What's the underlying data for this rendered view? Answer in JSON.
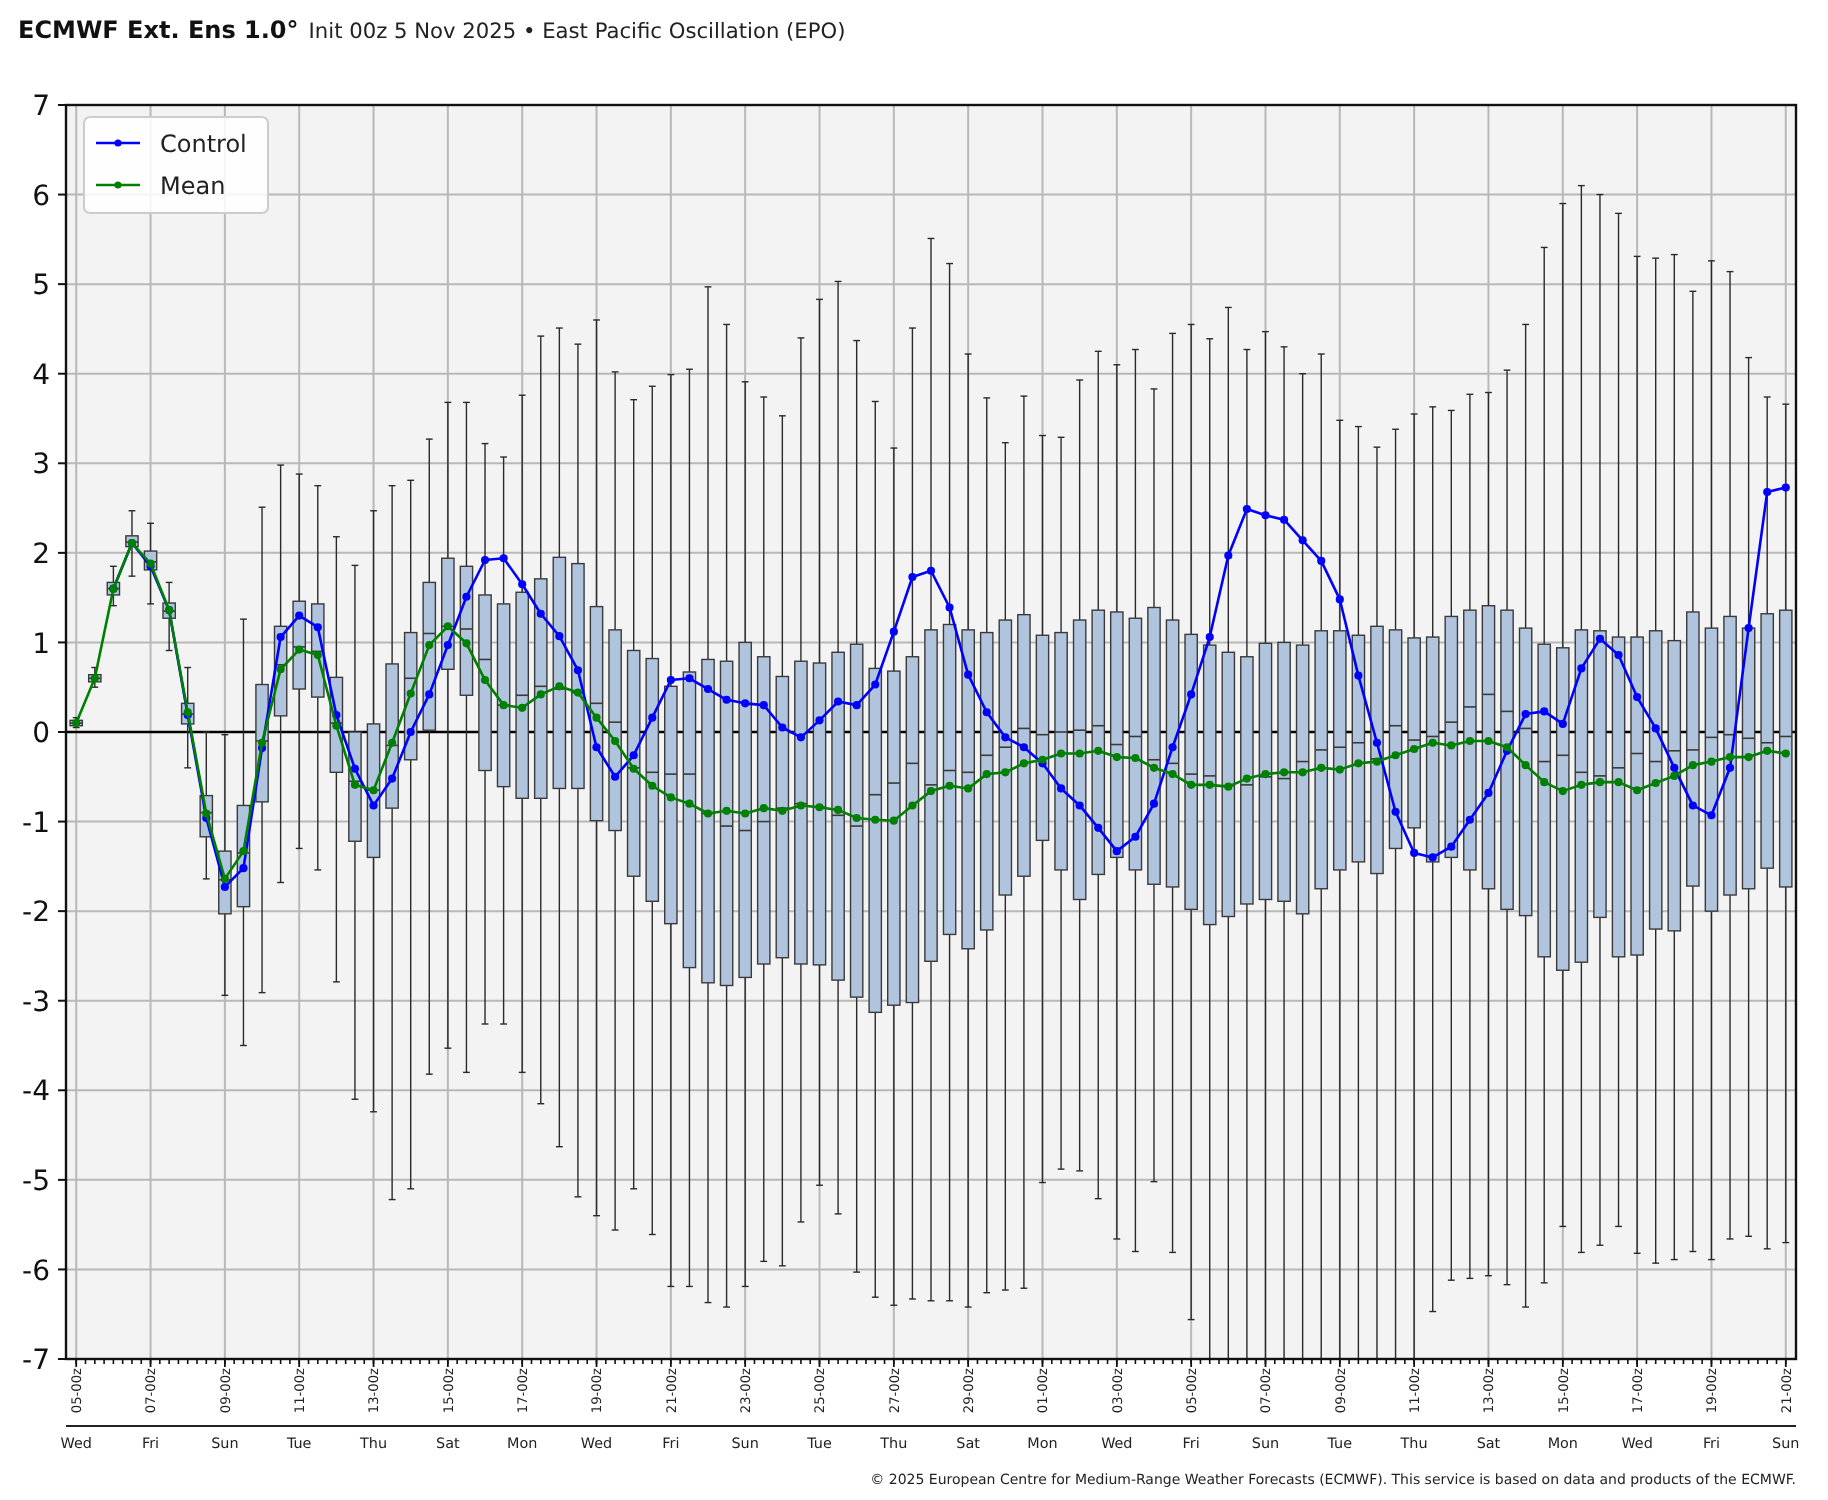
{
  "chart_data": {
    "type": "box",
    "title": "ECMWF Ext. Ens 1.0°",
    "subtitle": "Init 00z 5 Nov 2025 • East Pacific Oscillation (EPO)",
    "categories": [
      "05-00z\nWed",
      null,
      null,
      null,
      "07-00z\nFri",
      null,
      null,
      null,
      "09-00z\nSun",
      null,
      null,
      null,
      "11-00z\nTue",
      null,
      null,
      null,
      "13-00z\nThu",
      null,
      null,
      null,
      "15-00z\nSat",
      null,
      null,
      null,
      "17-00z\nMon",
      null,
      null,
      null,
      "19-00z\nWed",
      null,
      null,
      null,
      "21-00z\nFri",
      null,
      null,
      null,
      "23-00z\nSun",
      null,
      null,
      null,
      "25-00z\nTue",
      null,
      null,
      null,
      "27-00z\nThu",
      null,
      null,
      null,
      "29-00z\nSat",
      null,
      null,
      null,
      "01-00z\nMon",
      null,
      null,
      null,
      "03-00z\nWed",
      null,
      null,
      null,
      "05-00z\nFri",
      null,
      null,
      null,
      "07-00z\nSun",
      null,
      null,
      null,
      "09-00z\nTue",
      null,
      null,
      null,
      "11-00z\nThu",
      null,
      null,
      null,
      "13-00z\nSat",
      null,
      null,
      null,
      "15-00z\nMon",
      null,
      null,
      null,
      "17-00z\nWed",
      null,
      null,
      null,
      "19-00z\nFri",
      null,
      null,
      null,
      "21-00z\nSun"
    ],
    "series": [
      {
        "color": "#b0c4de",
        "boxes": [
          {
            "low": 0.05,
            "q1": 0.07,
            "median": 0.1,
            "q3": 0.13,
            "high": 0.16
          },
          {
            "low": 0.5,
            "q1": 0.56,
            "median": 0.6,
            "q3": 0.64,
            "high": 0.72
          },
          {
            "low": 1.41,
            "q1": 1.53,
            "median": 1.6,
            "q3": 1.67,
            "high": 1.85
          },
          {
            "low": 1.74,
            "q1": 2.07,
            "median": 2.12,
            "q3": 2.19,
            "high": 2.47
          },
          {
            "low": 1.43,
            "q1": 1.81,
            "median": 1.9,
            "q3": 2.02,
            "high": 2.33
          },
          {
            "low": 0.91,
            "q1": 1.27,
            "median": 1.35,
            "q3": 1.44,
            "high": 1.67
          },
          {
            "low": -0.4,
            "q1": 0.09,
            "median": 0.2,
            "q3": 0.32,
            "high": 0.72
          },
          {
            "low": -1.64,
            "q1": -1.17,
            "median": -0.9,
            "q3": -0.71,
            "high": 0.0
          },
          {
            "low": -2.94,
            "q1": -2.03,
            "median": -1.65,
            "q3": -1.33,
            "high": -0.03
          },
          {
            "low": -3.5,
            "q1": -1.95,
            "median": -1.35,
            "q3": -0.82,
            "high": 1.26
          },
          {
            "low": -2.91,
            "q1": -0.78,
            "median": -0.1,
            "q3": 0.53,
            "high": 2.51
          },
          {
            "low": -1.68,
            "q1": 0.18,
            "median": 0.75,
            "q3": 1.18,
            "high": 2.98
          },
          {
            "low": -1.3,
            "q1": 0.48,
            "median": 0.95,
            "q3": 1.46,
            "high": 2.88
          },
          {
            "low": -1.54,
            "q1": 0.39,
            "median": 0.9,
            "q3": 1.43,
            "high": 2.75
          },
          {
            "low": -2.79,
            "q1": -0.45,
            "median": 0.1,
            "q3": 0.61,
            "high": 2.18
          },
          {
            "low": -4.1,
            "q1": -1.22,
            "median": -0.55,
            "q3": 0.0,
            "high": 1.86
          },
          {
            "low": -4.24,
            "q1": -1.4,
            "median": -0.65,
            "q3": 0.09,
            "high": 2.47
          },
          {
            "low": -5.22,
            "q1": -0.85,
            "median": -0.15,
            "q3": 0.76,
            "high": 2.75
          },
          {
            "low": -5.1,
            "q1": -0.31,
            "median": 0.6,
            "q3": 1.11,
            "high": 2.81
          },
          {
            "low": -3.82,
            "q1": 0.02,
            "median": 1.1,
            "q3": 1.67,
            "high": 3.27
          },
          {
            "low": -3.53,
            "q1": 0.7,
            "median": 1.18,
            "q3": 1.94,
            "high": 3.68
          },
          {
            "low": -3.8,
            "q1": 0.41,
            "median": 1.15,
            "q3": 1.85,
            "high": 3.68
          },
          {
            "low": -3.26,
            "q1": -0.43,
            "median": 0.81,
            "q3": 1.53,
            "high": 3.22
          },
          {
            "low": -3.26,
            "q1": -0.61,
            "median": 0.3,
            "q3": 1.43,
            "high": 3.07
          },
          {
            "low": -3.8,
            "q1": -0.74,
            "median": 0.41,
            "q3": 1.56,
            "high": 3.76
          },
          {
            "low": -4.15,
            "q1": -0.74,
            "median": 0.51,
            "q3": 1.71,
            "high": 4.42
          },
          {
            "low": -4.63,
            "q1": -0.63,
            "median": 0.48,
            "q3": 1.95,
            "high": 4.51
          },
          {
            "low": -5.19,
            "q1": -0.63,
            "median": 0.44,
            "q3": 1.88,
            "high": 4.33
          },
          {
            "low": -5.4,
            "q1": -0.99,
            "median": 0.32,
            "q3": 1.4,
            "high": 4.6
          },
          {
            "low": -5.56,
            "q1": -1.1,
            "median": 0.11,
            "q3": 1.14,
            "high": 4.02
          },
          {
            "low": -5.1,
            "q1": -1.61,
            "median": -0.4,
            "q3": 0.91,
            "high": 3.71
          },
          {
            "low": -5.61,
            "q1": -1.89,
            "median": -0.45,
            "q3": 0.82,
            "high": 3.86
          },
          {
            "low": -6.19,
            "q1": -2.14,
            "median": -0.47,
            "q3": 0.51,
            "high": 3.99
          },
          {
            "low": -6.19,
            "q1": -2.63,
            "median": -0.47,
            "q3": 0.67,
            "high": 4.05
          },
          {
            "low": -6.37,
            "q1": -2.8,
            "median": -0.91,
            "q3": 0.81,
            "high": 4.97
          },
          {
            "low": -6.42,
            "q1": -2.83,
            "median": -1.05,
            "q3": 0.79,
            "high": 4.55
          },
          {
            "low": -6.19,
            "q1": -2.74,
            "median": -1.1,
            "q3": 1.0,
            "high": 3.91
          },
          {
            "low": -5.91,
            "q1": -2.59,
            "median": -1.0,
            "q3": 0.84,
            "high": 3.74
          },
          {
            "low": -5.96,
            "q1": -2.52,
            "median": -0.85,
            "q3": 0.62,
            "high": 3.53
          },
          {
            "low": -5.47,
            "q1": -2.59,
            "median": -0.8,
            "q3": 0.79,
            "high": 4.4
          },
          {
            "low": -5.06,
            "q1": -2.6,
            "median": -0.84,
            "q3": 0.77,
            "high": 4.83
          },
          {
            "low": -5.38,
            "q1": -2.77,
            "median": -0.93,
            "q3": 0.89,
            "high": 5.03
          },
          {
            "low": -6.03,
            "q1": -2.96,
            "median": -1.05,
            "q3": 0.98,
            "high": 4.37
          },
          {
            "low": -6.31,
            "q1": -3.13,
            "median": -0.7,
            "q3": 0.71,
            "high": 3.69
          },
          {
            "low": -6.4,
            "q1": -3.05,
            "median": -0.57,
            "q3": 0.68,
            "high": 3.17
          },
          {
            "low": -6.33,
            "q1": -3.02,
            "median": -0.35,
            "q3": 0.84,
            "high": 4.51
          },
          {
            "low": -6.35,
            "q1": -2.56,
            "median": -0.59,
            "q3": 1.14,
            "high": 5.51
          },
          {
            "low": -6.35,
            "q1": -2.26,
            "median": -0.43,
            "q3": 1.2,
            "high": 5.23
          },
          {
            "low": -6.42,
            "q1": -2.42,
            "median": -0.45,
            "q3": 1.14,
            "high": 4.22
          },
          {
            "low": -6.26,
            "q1": -2.21,
            "median": -0.26,
            "q3": 1.11,
            "high": 3.73
          },
          {
            "low": -6.23,
            "q1": -1.82,
            "median": -0.17,
            "q3": 1.25,
            "high": 3.23
          },
          {
            "low": -6.21,
            "q1": -1.61,
            "median": 0.04,
            "q3": 1.31,
            "high": 3.75
          },
          {
            "low": -5.03,
            "q1": -1.21,
            "median": -0.03,
            "q3": 1.08,
            "high": 3.31
          },
          {
            "low": -4.88,
            "q1": -1.54,
            "median": 0.0,
            "q3": 1.11,
            "high": 3.29
          },
          {
            "low": -4.9,
            "q1": -1.87,
            "median": 0.02,
            "q3": 1.25,
            "high": 3.93
          },
          {
            "low": -5.21,
            "q1": -1.59,
            "median": 0.07,
            "q3": 1.36,
            "high": 4.25
          },
          {
            "low": -5.66,
            "q1": -1.4,
            "median": -0.14,
            "q3": 1.34,
            "high": 4.1
          },
          {
            "low": -5.8,
            "q1": -1.54,
            "median": -0.05,
            "q3": 1.27,
            "high": 4.27
          },
          {
            "low": -5.02,
            "q1": -1.7,
            "median": -0.31,
            "q3": 1.39,
            "high": 3.83
          },
          {
            "low": -5.81,
            "q1": -1.73,
            "median": -0.35,
            "q3": 1.25,
            "high": 4.45
          },
          {
            "low": -6.56,
            "q1": -1.98,
            "median": -0.47,
            "q3": 1.09,
            "high": 4.55
          },
          {
            "low": -7,
            "q1": -2.15,
            "median": -0.49,
            "q3": 0.97,
            "high": 4.39
          },
          {
            "low": -7,
            "q1": -2.06,
            "median": -0.6,
            "q3": 0.89,
            "high": 4.74
          },
          {
            "low": -7,
            "q1": -1.92,
            "median": -0.59,
            "q3": 0.84,
            "high": 4.27
          },
          {
            "low": -7,
            "q1": -1.87,
            "median": -0.5,
            "q3": 0.99,
            "high": 4.47
          },
          {
            "low": -7,
            "q1": -1.89,
            "median": -0.52,
            "q3": 1.0,
            "high": 4.3
          },
          {
            "low": -7,
            "q1": -2.03,
            "median": -0.33,
            "q3": 0.97,
            "high": 4.0
          },
          {
            "low": -7,
            "q1": -1.75,
            "median": -0.2,
            "q3": 1.13,
            "high": 4.22
          },
          {
            "low": -7,
            "q1": -1.54,
            "median": -0.17,
            "q3": 1.13,
            "high": 3.48
          },
          {
            "low": -7,
            "q1": -1.45,
            "median": -0.12,
            "q3": 1.08,
            "high": 3.41
          },
          {
            "low": -7,
            "q1": -1.58,
            "median": -0.3,
            "q3": 1.18,
            "high": 3.18
          },
          {
            "low": -7,
            "q1": -1.3,
            "median": 0.07,
            "q3": 1.14,
            "high": 3.38
          },
          {
            "low": -7,
            "q1": -1.07,
            "median": -0.09,
            "q3": 1.05,
            "high": 3.55
          },
          {
            "low": -6.47,
            "q1": -1.45,
            "median": -0.05,
            "q3": 1.06,
            "high": 3.63
          },
          {
            "low": -6.12,
            "q1": -1.4,
            "median": 0.11,
            "q3": 1.29,
            "high": 3.59
          },
          {
            "low": -6.1,
            "q1": -1.54,
            "median": 0.28,
            "q3": 1.36,
            "high": 3.77
          },
          {
            "low": -6.07,
            "q1": -1.75,
            "median": 0.42,
            "q3": 1.41,
            "high": 3.79
          },
          {
            "low": -6.17,
            "q1": -1.98,
            "median": 0.23,
            "q3": 1.36,
            "high": 4.04
          },
          {
            "low": -6.42,
            "q1": -2.05,
            "median": 0.04,
            "q3": 1.16,
            "high": 4.55
          },
          {
            "low": -6.15,
            "q1": -2.51,
            "median": -0.33,
            "q3": 0.98,
            "high": 5.41
          },
          {
            "low": -5.52,
            "q1": -2.66,
            "median": -0.26,
            "q3": 0.94,
            "high": 5.9
          },
          {
            "low": -5.81,
            "q1": -2.57,
            "median": -0.45,
            "q3": 1.14,
            "high": 6.1
          },
          {
            "low": -5.73,
            "q1": -2.07,
            "median": -0.49,
            "q3": 1.13,
            "high": 6.0
          },
          {
            "low": -5.52,
            "q1": -2.51,
            "median": -0.4,
            "q3": 1.06,
            "high": 5.79
          },
          {
            "low": -5.82,
            "q1": -2.49,
            "median": -0.24,
            "q3": 1.06,
            "high": 5.31
          },
          {
            "low": -5.93,
            "q1": -2.2,
            "median": -0.33,
            "q3": 1.13,
            "high": 5.29
          },
          {
            "low": -5.89,
            "q1": -2.22,
            "median": -0.21,
            "q3": 1.02,
            "high": 5.33
          },
          {
            "low": -5.8,
            "q1": -1.72,
            "median": -0.2,
            "q3": 1.34,
            "high": 4.92
          },
          {
            "low": -5.89,
            "q1": -2.0,
            "median": -0.06,
            "q3": 1.16,
            "high": 5.26
          },
          {
            "low": -5.66,
            "q1": -1.82,
            "median": -0.03,
            "q3": 1.29,
            "high": 5.14
          },
          {
            "low": -5.63,
            "q1": -1.75,
            "median": -0.07,
            "q3": 1.16,
            "high": 4.18
          },
          {
            "low": -5.77,
            "q1": -1.52,
            "median": -0.12,
            "q3": 1.32,
            "high": 3.74
          },
          {
            "low": -5.7,
            "q1": -1.73,
            "median": -0.05,
            "q3": 1.36,
            "high": 3.66
          }
        ]
      },
      {
        "name": "Control",
        "type": "line",
        "color": "#0000ff",
        "values": [
          null,
          null,
          1.6,
          2.11,
          1.85,
          1.36,
          0.19,
          -0.96,
          -1.73,
          -1.52,
          -0.18,
          1.06,
          1.3,
          1.17,
          0.19,
          -0.41,
          -0.82,
          -0.52,
          0.0,
          0.42,
          0.97,
          1.51,
          1.92,
          1.94,
          1.65,
          1.32,
          1.07,
          0.69,
          -0.17,
          -0.5,
          -0.26,
          0.16,
          0.58,
          0.6,
          0.48,
          0.36,
          0.32,
          0.3,
          0.05,
          -0.06,
          0.13,
          0.34,
          0.3,
          0.53,
          1.12,
          1.73,
          1.8,
          1.39,
          0.64,
          0.22,
          -0.06,
          -0.17,
          -0.35,
          -0.63,
          -0.82,
          -1.07,
          -1.33,
          -1.17,
          -0.8,
          -0.17,
          0.42,
          1.06,
          1.97,
          2.49,
          2.42,
          2.37,
          2.14,
          1.91,
          1.48,
          0.63,
          -0.12,
          -0.89,
          -1.35,
          -1.4,
          -1.28,
          -0.98,
          -0.68,
          -0.21,
          0.2,
          0.23,
          0.09,
          0.71,
          1.04,
          0.86,
          0.39,
          0.04,
          -0.4,
          -0.82,
          -0.93,
          -0.4,
          1.16,
          2.68,
          2.73
        ]
      },
      {
        "name": "Mean",
        "type": "line",
        "color": "#008000",
        "values": [
          0.1,
          0.6,
          1.6,
          2.11,
          1.88,
          1.36,
          0.22,
          -0.91,
          -1.64,
          -1.33,
          -0.12,
          0.7,
          0.92,
          0.86,
          0.07,
          -0.59,
          -0.65,
          -0.12,
          0.43,
          0.97,
          1.18,
          0.99,
          0.58,
          0.3,
          0.27,
          0.42,
          0.51,
          0.44,
          0.16,
          -0.1,
          -0.41,
          -0.6,
          -0.73,
          -0.8,
          -0.91,
          -0.88,
          -0.91,
          -0.85,
          -0.88,
          -0.82,
          -0.84,
          -0.87,
          -0.96,
          -0.98,
          -0.99,
          -0.82,
          -0.66,
          -0.6,
          -0.63,
          -0.47,
          -0.45,
          -0.35,
          -0.31,
          -0.24,
          -0.24,
          -0.21,
          -0.28,
          -0.29,
          -0.4,
          -0.47,
          -0.59,
          -0.59,
          -0.61,
          -0.52,
          -0.47,
          -0.45,
          -0.45,
          -0.4,
          -0.42,
          -0.35,
          -0.33,
          -0.26,
          -0.19,
          -0.12,
          -0.15,
          -0.1,
          -0.1,
          -0.17,
          -0.37,
          -0.56,
          -0.66,
          -0.59,
          -0.56,
          -0.56,
          -0.65,
          -0.57,
          -0.49,
          -0.37,
          -0.33,
          -0.28,
          -0.28,
          -0.21,
          -0.24
        ]
      }
    ],
    "ylim": [
      -7,
      7
    ],
    "yticks": [
      -7,
      -6,
      -5,
      -4,
      -3,
      -2,
      -1,
      0,
      1,
      2,
      3,
      4,
      5,
      6,
      7
    ],
    "grid": true,
    "legend": "top left",
    "marker": "circle",
    "ref_lines": [
      {
        "axis": "y",
        "value": 0,
        "color": "#000000"
      }
    ],
    "annotations": [
      "© 2025 European Centre for Medium-Range Weather Forecasts (ECMWF). This service is based on data and products of the ECMWF."
    ]
  }
}
